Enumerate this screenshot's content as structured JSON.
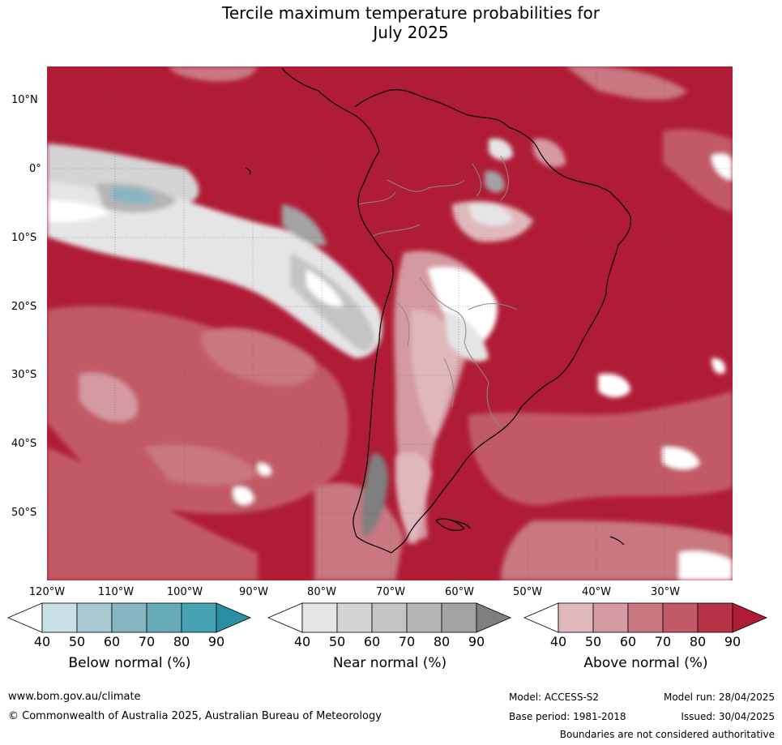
{
  "title_line1": "Tercile maximum temperature probabilities for",
  "title_line2": "July 2025",
  "map": {
    "lat_labels": [
      "10°N",
      "0°",
      "10°S",
      "20°S",
      "30°S",
      "40°S",
      "50°S"
    ],
    "lon_labels": [
      "120°W",
      "110°W",
      "100°W",
      "90°W",
      "80°W",
      "70°W",
      "60°W",
      "50°W",
      "40°W",
      "30°W"
    ]
  },
  "legends": [
    {
      "title": "Below normal (%)",
      "ticks": [
        "40",
        "50",
        "60",
        "70",
        "80",
        "90"
      ],
      "colors": [
        "#ffffff",
        "#c9e0e6",
        "#a6c8d0",
        "#87b5c1",
        "#66a9b7",
        "#46a2b2",
        "#2b8fa4"
      ]
    },
    {
      "title": "Near normal (%)",
      "ticks": [
        "40",
        "50",
        "60",
        "70",
        "80",
        "90"
      ],
      "colors": [
        "#ffffff",
        "#e5e5e5",
        "#d4d4d4",
        "#c4c4c4",
        "#b5b5b5",
        "#a3a3a3",
        "#7f7f7f"
      ]
    },
    {
      "title": "Above normal (%)",
      "ticks": [
        "40",
        "50",
        "60",
        "70",
        "80",
        "90"
      ],
      "colors": [
        "#ffffff",
        "#e0b8bc",
        "#d59aa1",
        "#c97780",
        "#c25a65",
        "#b73245",
        "#b01c36"
      ]
    }
  ],
  "footer": {
    "website": "www.bom.gov.au/climate",
    "copyright": "© Commonwealth of Australia 2025, Australian Bureau of Meteorology",
    "model": "Model: ACCESS-S2",
    "base_period": "Base period: 1981-2018",
    "model_run": "Model run: 28/04/2025",
    "issued": "Issued: 30/04/2025",
    "disclaimer": "Boundaries are not considered authoritative"
  }
}
